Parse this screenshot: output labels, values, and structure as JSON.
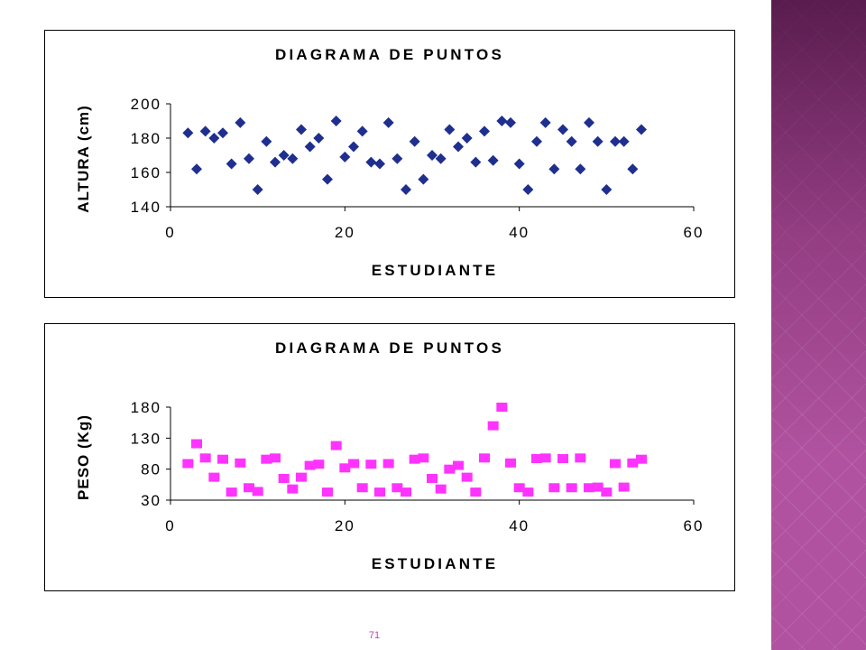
{
  "slide": {
    "page_number": "71",
    "accent_color": "#b0529f"
  },
  "chart_data": [
    {
      "type": "scatter",
      "title": "DIAGRAMA DE PUNTOS",
      "xlabel": "ESTUDIANTE",
      "ylabel": "ALTURA (cm)",
      "xlim": [
        0,
        60
      ],
      "ylim": [
        140,
        200
      ],
      "xticks": [
        0,
        20,
        40,
        60
      ],
      "yticks": [
        140,
        160,
        180,
        200
      ],
      "grid": false,
      "marker": "diamond",
      "color": "#1f2f8f",
      "x": [
        2,
        3,
        4,
        5,
        6,
        7,
        8,
        9,
        10,
        11,
        12,
        13,
        14,
        15,
        16,
        17,
        18,
        19,
        20,
        21,
        22,
        23,
        24,
        25,
        26,
        27,
        28,
        29,
        30,
        31,
        32,
        33,
        34,
        35,
        36,
        37,
        38,
        39,
        40,
        41,
        42,
        43,
        44,
        45,
        46,
        47,
        48,
        49,
        50,
        51,
        52,
        53,
        54
      ],
      "y": [
        183,
        162,
        184,
        180,
        183,
        165,
        189,
        168,
        150,
        178,
        166,
        170,
        168,
        185,
        175,
        180,
        156,
        190,
        169,
        175,
        184,
        166,
        165,
        189,
        168,
        150,
        178,
        156,
        170,
        168,
        185,
        175,
        180,
        166,
        184,
        167,
        190,
        189,
        165,
        150,
        178,
        189,
        162,
        185,
        178,
        162,
        189,
        178,
        150,
        178,
        178,
        162,
        185
      ]
    },
    {
      "type": "scatter",
      "title": "DIAGRAMA DE PUNTOS",
      "xlabel": "ESTUDIANTE",
      "ylabel": "PESO  (Kg)",
      "xlim": [
        0,
        60
      ],
      "ylim": [
        30,
        180
      ],
      "xticks": [
        0,
        20,
        40,
        60
      ],
      "yticks": [
        30,
        80,
        130,
        180
      ],
      "grid": false,
      "marker": "square",
      "color": "#ff33ff",
      "x": [
        2,
        3,
        4,
        5,
        6,
        7,
        8,
        9,
        10,
        11,
        12,
        13,
        14,
        15,
        16,
        17,
        18,
        19,
        20,
        21,
        22,
        23,
        24,
        25,
        26,
        27,
        28,
        29,
        30,
        31,
        32,
        33,
        34,
        35,
        36,
        37,
        38,
        39,
        40,
        41,
        42,
        43,
        44,
        45,
        46,
        47,
        48,
        49,
        50,
        51,
        52,
        53,
        54
      ],
      "y": [
        89,
        121,
        98,
        67,
        96,
        43,
        90,
        50,
        44,
        96,
        98,
        65,
        48,
        67,
        86,
        88,
        43,
        118,
        82,
        89,
        50,
        88,
        43,
        89,
        50,
        43,
        96,
        98,
        65,
        48,
        80,
        86,
        67,
        43,
        98,
        150,
        180,
        90,
        50,
        43,
        97,
        98,
        50,
        97,
        50,
        98,
        50,
        51,
        43,
        89,
        51,
        90,
        96
      ]
    }
  ]
}
